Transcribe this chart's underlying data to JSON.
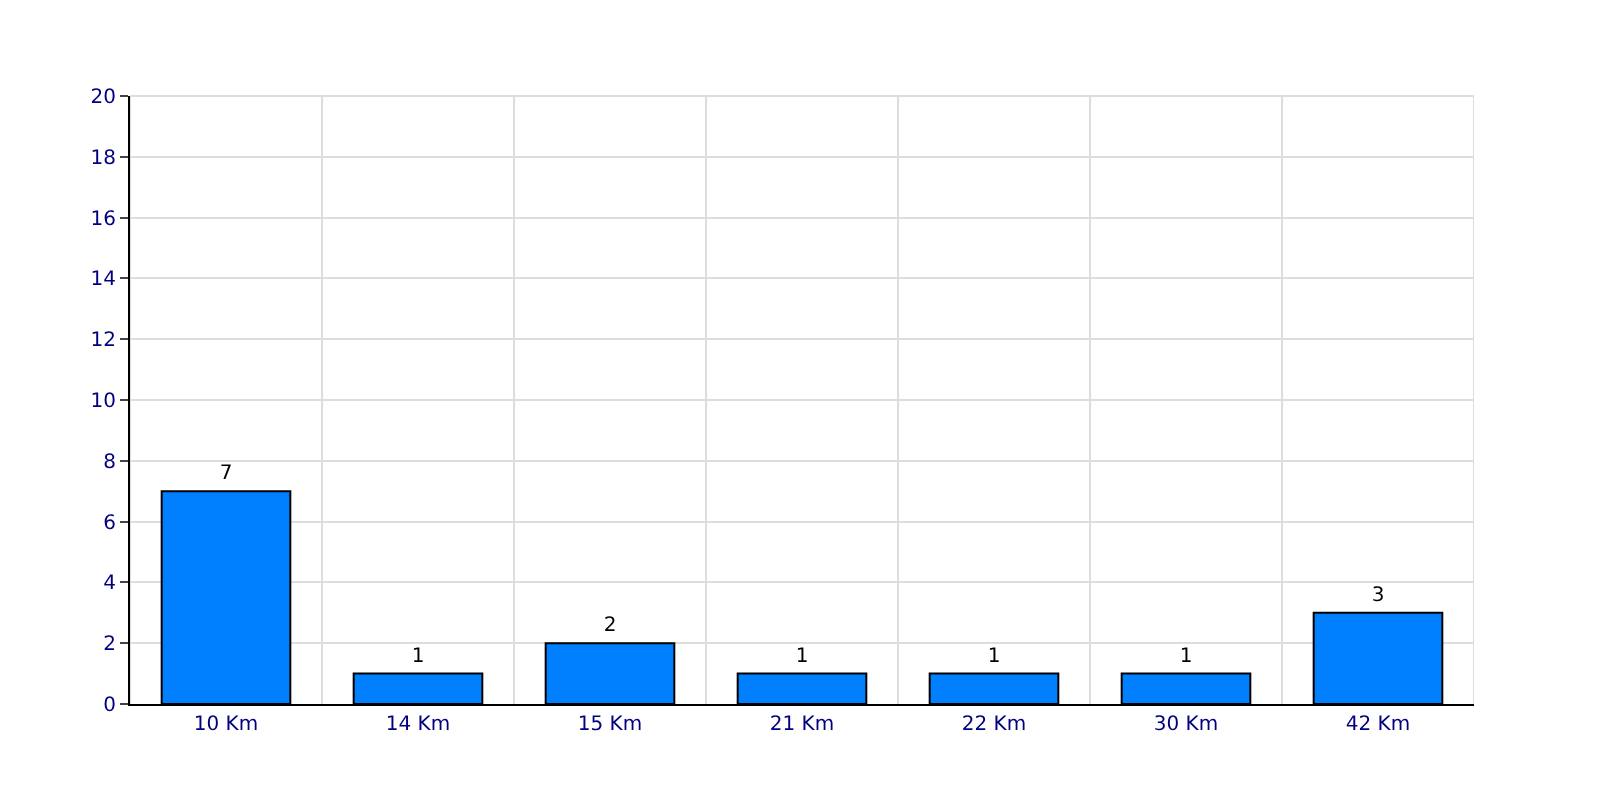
{
  "chart_data": {
    "type": "bar",
    "categories": [
      "10 Km",
      "14 Km",
      "15 Km",
      "21 Km",
      "22 Km",
      "30 Km",
      "42 Km"
    ],
    "values": [
      7,
      1,
      2,
      1,
      1,
      1,
      3
    ],
    "color": "#0080ff",
    "ylim": [
      0,
      20
    ],
    "yticks": [
      0,
      2,
      4,
      6,
      8,
      10,
      12,
      14,
      16,
      18,
      20
    ],
    "grid": true,
    "data_labels": true,
    "legend": false
  }
}
